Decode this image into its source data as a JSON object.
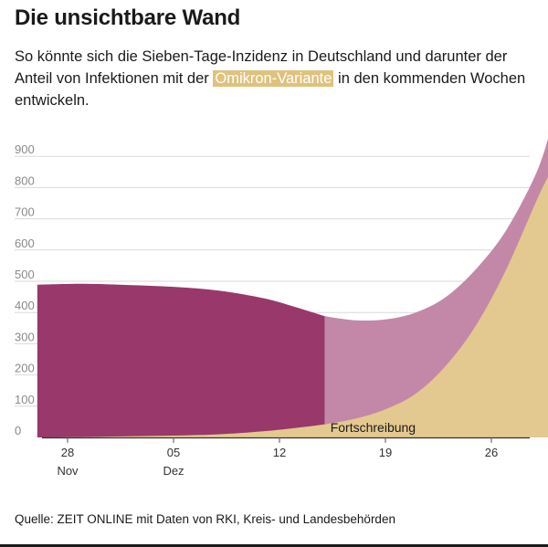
{
  "title": "Die unsichtbare Wand",
  "subtitle_parts": {
    "before": "So könnte sich die Sieben-Tage-Inzidenz in Deutschland und darunter der Anteil von Infektionen mit der ",
    "highlight": "Omikron-Variante",
    "after": " in den kommenden Wochen entwickeln."
  },
  "source": "Quelle: ZEIT ONLINE mit Daten von RKI, Kreis- und Landesbehörden",
  "colors": {
    "observed_total": "#98386b",
    "projected_total": "#c388a8",
    "omikron": "#e3c98f",
    "axis_text": "#8a8a8a",
    "grid": "#d9d9d9"
  },
  "chart_data": {
    "type": "area",
    "ylim": [
      0,
      1000
    ],
    "yticks": [
      0,
      100,
      200,
      300,
      400,
      500,
      600,
      700,
      800,
      900
    ],
    "xticks": [
      {
        "day": "28",
        "month": "Nov",
        "x": "2021-11-28"
      },
      {
        "day": "05",
        "month": "Dez",
        "x": "2021-12-05"
      },
      {
        "day": "12",
        "month": "",
        "x": "2021-12-12"
      },
      {
        "day": "19",
        "month": "",
        "x": "2021-12-19"
      },
      {
        "day": "26",
        "month": "",
        "x": "2021-12-26"
      }
    ],
    "annotation": "Fortschreibung",
    "projection_start": "2021-12-15",
    "series": [
      {
        "key": "total",
        "x": [
          "2021-11-26",
          "2021-11-29",
          "2021-12-02",
          "2021-12-05",
          "2021-12-08",
          "2021-12-11",
          "2021-12-13",
          "2021-12-15",
          "2021-12-17",
          "2021-12-19",
          "2021-12-21",
          "2021-12-23",
          "2021-12-25",
          "2021-12-27",
          "2021-12-29",
          "2021-12-30"
        ],
        "values": [
          489,
          492,
          488,
          482,
          470,
          445,
          418,
          388,
          375,
          378,
          400,
          450,
          540,
          665,
          850,
          1000
        ]
      },
      {
        "key": "omikron",
        "x": [
          "2021-11-26",
          "2021-11-30",
          "2021-12-04",
          "2021-12-08",
          "2021-12-11",
          "2021-12-13",
          "2021-12-15",
          "2021-12-17",
          "2021-12-19",
          "2021-12-21",
          "2021-12-23",
          "2021-12-25",
          "2021-12-27",
          "2021-12-29",
          "2021-12-30"
        ],
        "values": [
          0,
          2,
          5,
          10,
          20,
          30,
          42,
          60,
          90,
          140,
          230,
          360,
          540,
          760,
          860
        ]
      }
    ]
  }
}
